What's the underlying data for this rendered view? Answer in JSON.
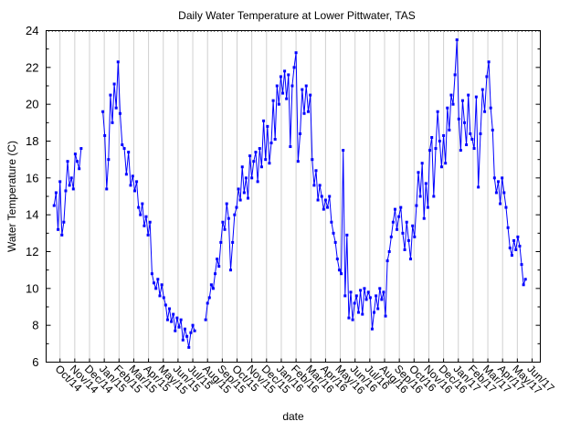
{
  "chart_data": {
    "type": "line",
    "title": "Daily Water Temperature at  Lower Pittwater, TAS",
    "xlabel": "date",
    "ylabel": "Water Temperature (C)",
    "ylim": [
      6,
      24
    ],
    "yticks": [
      6,
      8,
      10,
      12,
      14,
      16,
      18,
      20,
      22,
      24
    ],
    "xlim": [
      "2014-09-02",
      "2017-06-16"
    ],
    "xtick_labels": [
      "Oct/14",
      "Nov/14",
      "Dec/14",
      "Jan/15",
      "Feb/15",
      "Mar/15",
      "Apr/15",
      "May/15",
      "Jun/15",
      "Jul/15",
      "Aug/15",
      "Sep/15",
      "Oct/15",
      "Nov/15",
      "Dec/15",
      "Jan/16",
      "Feb/16",
      "Mar/16",
      "Apr/16",
      "May/16",
      "Jun/16",
      "Jul/16",
      "Aug/16",
      "Sep/16",
      "Oct/16",
      "Nov/16",
      "Dec/16",
      "Jan/17",
      "Feb/17",
      "Mar/17",
      "Apr/17",
      "May/17",
      "Jun/17"
    ],
    "xtick_start_month": "2014-10",
    "grid": "vertical",
    "series_color": "#0000ff",
    "series": [
      {
        "name": "segment-1",
        "start": "2014-09-19",
        "step_days": 4,
        "values": [
          14.5,
          15.2,
          13.2,
          15.8,
          12.9,
          13.6,
          15.3,
          16.9,
          15.6,
          16.0,
          15.4,
          17.3,
          16.9,
          16.5,
          17.6
        ]
      },
      {
        "name": "segment-2",
        "start": "2014-12-29",
        "step_days": 4,
        "values": [
          19.6,
          18.3,
          15.4,
          17.0,
          20.5,
          19.0,
          21.1,
          19.8,
          22.3,
          19.5,
          17.8,
          17.6,
          16.2,
          17.4,
          15.6,
          16.1,
          15.3,
          15.8,
          14.4,
          14.0,
          14.6,
          13.4,
          13.9,
          12.9,
          13.6,
          10.8,
          10.3,
          10.0,
          10.5,
          9.6,
          10.2,
          9.5,
          9.1,
          8.3,
          8.9,
          8.2,
          8.6,
          7.7,
          8.4,
          7.9,
          8.3,
          7.2,
          7.8,
          7.4,
          6.8,
          7.6,
          8.0,
          7.7
        ]
      },
      {
        "name": "segment-3",
        "start": "2015-07-28",
        "step_days": 4,
        "values": [
          8.3,
          9.2,
          9.5,
          10.2,
          10.0,
          10.8,
          11.6,
          11.2,
          12.5,
          13.6,
          13.2,
          14.6,
          13.8,
          11.0,
          12.5,
          14.0,
          14.4,
          15.4,
          14.8,
          16.6,
          15.2,
          16.0,
          14.9,
          17.2,
          16.0,
          16.9,
          17.4,
          15.8,
          17.6,
          16.6,
          19.1,
          17.0,
          18.8,
          16.8,
          17.9,
          20.2,
          18.1,
          21.0,
          20.0,
          21.5,
          20.6,
          21.8,
          20.3,
          21.6,
          17.7,
          21.0,
          22.0,
          22.8,
          16.9,
          18.4,
          20.8,
          19.5,
          21.0,
          19.6,
          20.5,
          17.0,
          15.6,
          16.4,
          14.8,
          15.6,
          15.0,
          14.3,
          14.8,
          14.4,
          15.0,
          13.6,
          13.0,
          12.5,
          11.6,
          11.0,
          10.8,
          17.5,
          9.6,
          12.9,
          8.4,
          9.8,
          8.3,
          9.2,
          9.6,
          8.7,
          9.9,
          8.6,
          10.0,
          9.4,
          9.8,
          9.5,
          7.8,
          8.7,
          9.6,
          8.9,
          10.0,
          9.4,
          9.8,
          8.5,
          11.5,
          12.0,
          12.8,
          13.6,
          14.3,
          13.2,
          13.9,
          14.4,
          13.0,
          12.1,
          13.6,
          12.6,
          11.6,
          13.4,
          12.8,
          14.5,
          16.3,
          15.0,
          16.8,
          13.8,
          15.7,
          14.4,
          17.5,
          18.2,
          15.0,
          17.6,
          19.6,
          18.0,
          16.6,
          18.3,
          16.8,
          19.8,
          18.6,
          20.5,
          20.0,
          21.6,
          23.5,
          19.2,
          17.5,
          20.2,
          19.0,
          17.8,
          20.5,
          18.4,
          18.1,
          17.6,
          20.4,
          15.5,
          18.4,
          20.8,
          19.6,
          21.5,
          22.3,
          19.8,
          18.6,
          16.0,
          15.2,
          15.8,
          14.6,
          16.0,
          15.2,
          14.4,
          13.3,
          12.2,
          11.8,
          12.6,
          12.1,
          12.8,
          12.3,
          11.3,
          10.2,
          10.5
        ]
      }
    ]
  }
}
